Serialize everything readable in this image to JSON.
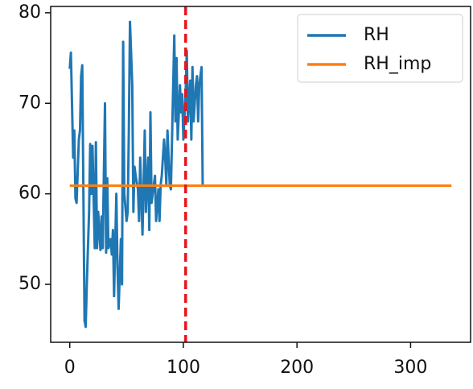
{
  "chart_data": {
    "type": "line",
    "series": [
      {
        "name": "RH",
        "color": "#1f77b4",
        "x": [
          0,
          1,
          3,
          4,
          5,
          6,
          8,
          9,
          10,
          11,
          13,
          14,
          15,
          17,
          18,
          19,
          20,
          22,
          23,
          24,
          25,
          27,
          28,
          29,
          31,
          32,
          33,
          34,
          36,
          37,
          38,
          39,
          41,
          42,
          43,
          45,
          46,
          47,
          48,
          50,
          51,
          52,
          53,
          55,
          56,
          57,
          58,
          60,
          61,
          62,
          64,
          65,
          66,
          67,
          69,
          70,
          71,
          72,
          74,
          75,
          76,
          78,
          79,
          80,
          81,
          83,
          84,
          85,
          86,
          88,
          89,
          90,
          92,
          93,
          94,
          95,
          97,
          98,
          99,
          100,
          102,
          103,
          104,
          106,
          107,
          108,
          109,
          111,
          112,
          113,
          114,
          116,
          117
        ],
        "values": [
          73.8,
          75.6,
          64,
          67,
          59.5,
          59,
          66,
          67,
          73,
          74.2,
          46,
          45.3,
          50,
          58,
          65.5,
          60,
          65.3,
          54,
          65.7,
          54,
          58,
          53.8,
          57.5,
          54,
          70,
          53.5,
          61.7,
          54,
          55,
          53.3,
          56,
          48.7,
          60,
          52,
          47.3,
          55,
          50,
          76.8,
          60,
          57,
          58,
          67,
          79,
          72,
          58,
          63,
          62,
          60.5,
          57,
          64,
          55.5,
          61,
          67,
          58,
          64,
          56,
          69,
          59,
          61,
          62,
          57,
          60.5,
          57,
          61,
          62,
          66,
          64,
          61,
          67,
          61,
          60.5,
          66,
          77.5,
          68,
          75,
          66,
          72,
          69,
          71,
          66,
          71.2,
          75.8,
          68,
          72.5,
          66,
          74,
          68,
          72,
          73,
          68,
          72,
          74,
          61
        ]
      },
      {
        "name": "RH_imp",
        "color": "#ff7f0e",
        "x": [
          0,
          336
        ],
        "values": [
          60.9,
          60.9
        ]
      }
    ],
    "vline": {
      "x": 102,
      "color": "#e8141c"
    },
    "xlim": [
      -16.8,
      352.8
    ],
    "xticks": [
      0,
      100,
      200,
      300
    ],
    "ylim": [
      43.6,
      80.7
    ],
    "yticks": [
      50,
      60,
      70,
      80
    ],
    "legend": "upper right",
    "grid": false
  }
}
